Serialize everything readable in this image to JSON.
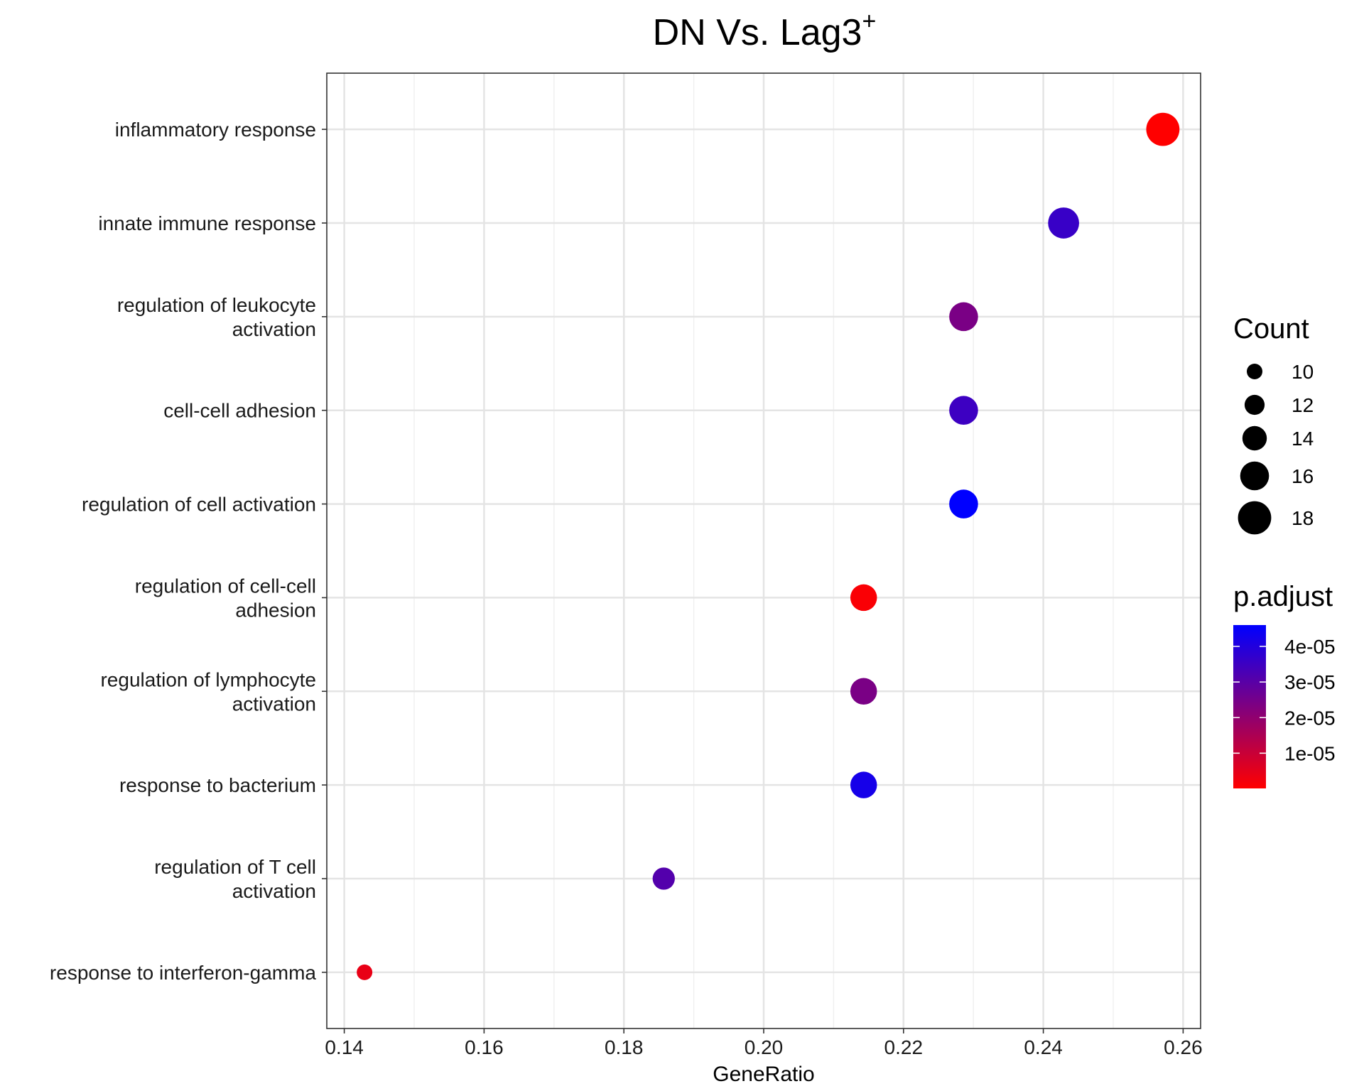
{
  "chart_data": {
    "type": "scatter",
    "title": "DN Vs. Lag3",
    "title_superscript": "+",
    "xlabel": "GeneRatio",
    "ylabel": "",
    "xlim": [
      0.1375,
      0.2625
    ],
    "x_ticks": [
      "0.14",
      "0.16",
      "0.18",
      "0.20",
      "0.22",
      "0.24",
      "0.26"
    ],
    "x_tick_values": [
      0.14,
      0.16,
      0.18,
      0.2,
      0.22,
      0.24,
      0.26
    ],
    "grid": true,
    "points": [
      {
        "term": [
          "inflammatory response"
        ],
        "gene_ratio": 0.2571,
        "count": 18,
        "p_adjust": 1e-07
      },
      {
        "term": [
          "innate immune response"
        ],
        "gene_ratio": 0.2429,
        "count": 17,
        "p_adjust": 3.6e-05
      },
      {
        "term": [
          "regulation of leukocyte",
          "activation"
        ],
        "gene_ratio": 0.2286,
        "count": 16,
        "p_adjust": 2.4e-05
      },
      {
        "term": [
          "cell-cell adhesion"
        ],
        "gene_ratio": 0.2286,
        "count": 16,
        "p_adjust": 3.5e-05
      },
      {
        "term": [
          "regulation of cell activation"
        ],
        "gene_ratio": 0.2286,
        "count": 16,
        "p_adjust": 4.6e-05
      },
      {
        "term": [
          "regulation of cell-cell",
          "adhesion"
        ],
        "gene_ratio": 0.2143,
        "count": 15,
        "p_adjust": 1e-06
      },
      {
        "term": [
          "regulation of lymphocyte",
          "activation"
        ],
        "gene_ratio": 0.2143,
        "count": 15,
        "p_adjust": 2.4e-05
      },
      {
        "term": [
          "response to bacterium"
        ],
        "gene_ratio": 0.2143,
        "count": 15,
        "p_adjust": 4.2e-05
      },
      {
        "term": [
          "regulation of T cell",
          "activation"
        ],
        "gene_ratio": 0.1857,
        "count": 13,
        "p_adjust": 3.1e-05
      },
      {
        "term": [
          "response to interferon-gamma"
        ],
        "gene_ratio": 0.1429,
        "count": 10,
        "p_adjust": 4e-06
      }
    ],
    "size_legend": {
      "title": "Count",
      "entries": [
        {
          "label": "10",
          "value": 10
        },
        {
          "label": "12",
          "value": 12
        },
        {
          "label": "14",
          "value": 14
        },
        {
          "label": "16",
          "value": 16
        },
        {
          "label": "18",
          "value": 18
        }
      ]
    },
    "color_legend": {
      "title": "p.adjust",
      "range": [
        1e-07,
        4.6e-05
      ],
      "low_color": "#ff0000",
      "high_color": "#0000ff",
      "ticks": [
        {
          "label": "4e-05",
          "value": 4e-05
        },
        {
          "label": "3e-05",
          "value": 3e-05
        },
        {
          "label": "2e-05",
          "value": 2e-05
        },
        {
          "label": "1e-05",
          "value": 1e-05
        }
      ]
    }
  }
}
